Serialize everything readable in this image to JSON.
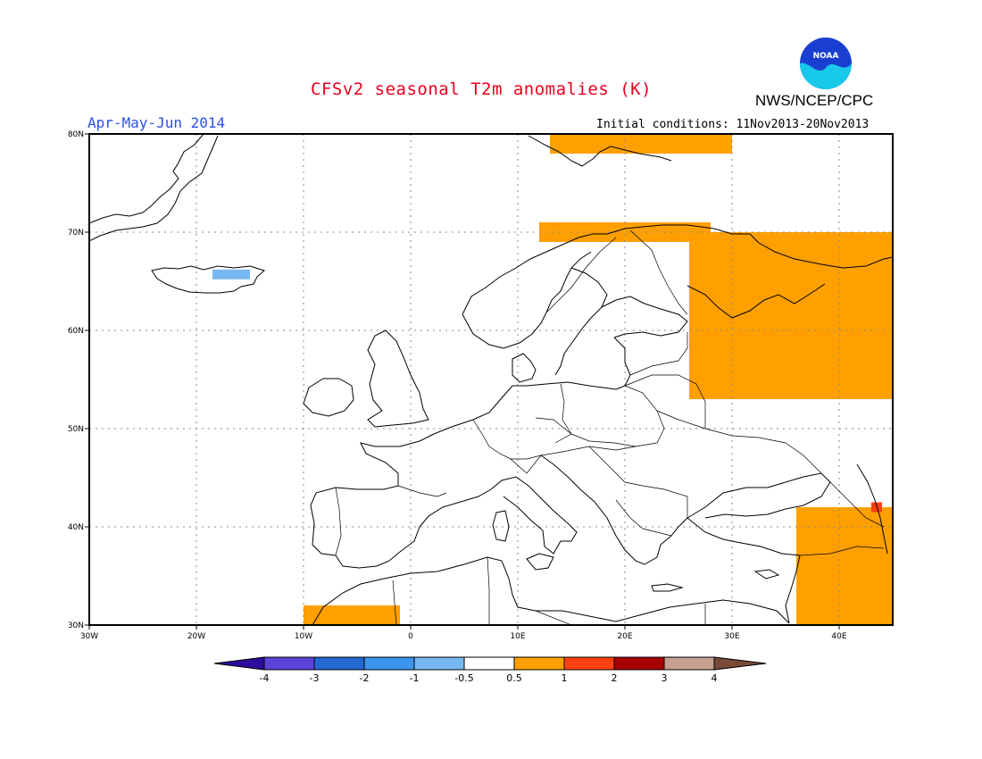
{
  "header": {
    "title": "CFSv2 seasonal T2m anomalies (K)",
    "season": "Apr-May-Jun 2014",
    "initial_conditions": "Initial conditions: 11Nov2013-20Nov2013",
    "agency": "NWS/NCEP/CPC",
    "logo_text": "NOAA"
  },
  "map": {
    "lon_range": [
      -30,
      45
    ],
    "lat_range": [
      30,
      80
    ],
    "lon_ticks": [
      {
        "value": -30,
        "label": "30W"
      },
      {
        "value": -20,
        "label": "20W"
      },
      {
        "value": -10,
        "label": "10W"
      },
      {
        "value": 0,
        "label": "0"
      },
      {
        "value": 10,
        "label": "10E"
      },
      {
        "value": 20,
        "label": "20E"
      },
      {
        "value": 30,
        "label": "30E"
      },
      {
        "value": 40,
        "label": "40E"
      }
    ],
    "lat_ticks": [
      {
        "value": 30,
        "label": "30N"
      },
      {
        "value": 40,
        "label": "40N"
      },
      {
        "value": 50,
        "label": "50N"
      },
      {
        "value": 60,
        "label": "60N"
      },
      {
        "value": 70,
        "label": "70N"
      },
      {
        "value": 80,
        "label": "80N"
      }
    ],
    "grid": true
  },
  "legend": {
    "labels": [
      "-4",
      "-3",
      "-2",
      "-1",
      "-0.5",
      "0.5",
      "1",
      "2",
      "3",
      "4"
    ],
    "colors": [
      "#2b0c9c",
      "#5a44d8",
      "#2468d0",
      "#3c96ec",
      "#78b8f0",
      "#ffffff",
      "#ffa000",
      "#ff4010",
      "#a80000",
      "#c8a090",
      "#7a4a38"
    ]
  },
  "anomalies": [
    {
      "level": "0.5-1",
      "color": "#ffa000",
      "region": "Svalbard",
      "lon": [
        13,
        30
      ],
      "lat": [
        78,
        80
      ]
    },
    {
      "level": "0.5-1",
      "color": "#ffa000",
      "region": "northern Norway coast",
      "lon": [
        12,
        28
      ],
      "lat": [
        69,
        71
      ]
    },
    {
      "level": "0.5-1",
      "color": "#ffa000",
      "region": "northwest Russia",
      "lon": [
        26,
        45
      ],
      "lat": [
        53,
        70
      ]
    },
    {
      "level": "0.5-1",
      "color": "#ffa000",
      "region": "Turkey and Middle East",
      "lon": [
        36,
        45
      ],
      "lat": [
        30,
        42
      ]
    },
    {
      "level": "0.5-1",
      "color": "#ffa000",
      "region": "Morocco / Algeria",
      "lon": [
        -10,
        -1
      ],
      "lat": [
        30,
        32
      ]
    },
    {
      "level": "1-2",
      "color": "#ff4010",
      "region": "Caucasus",
      "lon": [
        43,
        44
      ],
      "lat": [
        41.5,
        42.5
      ]
    },
    {
      "level": "-1 to -0.5",
      "color": "#78b8f0",
      "region": "Iceland",
      "lon": [
        -18.5,
        -15
      ],
      "lat": [
        65.2,
        66.2
      ]
    }
  ]
}
